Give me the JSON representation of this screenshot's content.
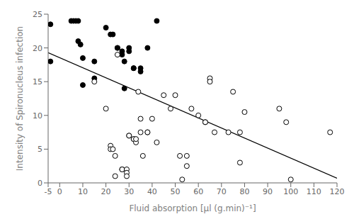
{
  "chart_data": {
    "type": "scatter",
    "xlabel": "Fluid absorption [μl (g.min)⁻¹]",
    "ylabel": "Intensity of Spironucleus infection",
    "xlim": [
      -5,
      120
    ],
    "ylim": [
      0,
      25
    ],
    "xticks": [
      -5,
      0,
      10,
      20,
      30,
      40,
      50,
      60,
      70,
      80,
      90,
      100,
      110,
      120
    ],
    "yticks": [
      0,
      5,
      10,
      15,
      20,
      25
    ],
    "grid": false,
    "series": [
      {
        "type": "scatter",
        "color": "#000000",
        "marker": "circle",
        "x": [
          -4,
          -4,
          5,
          6,
          7,
          8,
          8,
          9,
          10,
          10,
          15,
          15,
          20,
          22,
          23,
          25,
          25,
          27,
          27,
          28,
          28,
          30,
          30,
          32,
          32,
          35,
          35,
          38,
          42
        ],
        "values": [
          23.5,
          18,
          24,
          24,
          24,
          24,
          21,
          20.5,
          18.5,
          14.5,
          18,
          15.5,
          23,
          22,
          22,
          20,
          20,
          19,
          19.5,
          18,
          14,
          20,
          19.5,
          17,
          17,
          17,
          16.5,
          20,
          24
        ]
      },
      {
        "type": "scatter",
        "color": "#000000",
        "marker": "open_circle",
        "x": [
          15,
          20,
          22,
          22,
          23,
          24,
          24,
          25,
          27,
          27,
          29,
          29,
          29,
          30,
          30,
          32,
          32,
          33,
          33,
          34,
          35,
          35,
          36,
          38,
          38,
          40,
          42,
          45,
          48,
          50,
          52,
          53,
          55,
          57,
          60,
          63,
          63,
          65,
          65,
          67,
          73,
          75,
          78,
          80,
          95,
          98,
          117,
          55,
          78,
          100
        ],
        "values": [
          15,
          11,
          5.5,
          5,
          5,
          4,
          1,
          19,
          2,
          2,
          2,
          1.5,
          1,
          7,
          7,
          6.5,
          6.5,
          6,
          6.5,
          13.5,
          9.5,
          7.5,
          4,
          7.5,
          7.5,
          9.5,
          6,
          13,
          11,
          13,
          4,
          0.5,
          4,
          11,
          10,
          9,
          9,
          15.5,
          15,
          7.5,
          7.5,
          13.5,
          3,
          10.5,
          11,
          9,
          7.5,
          2.5,
          7.5,
          0.5
        ]
      },
      {
        "type": "line",
        "color": "#000000",
        "x": [
          -5,
          120
        ],
        "values": [
          19.3,
          0.7
        ]
      }
    ]
  }
}
